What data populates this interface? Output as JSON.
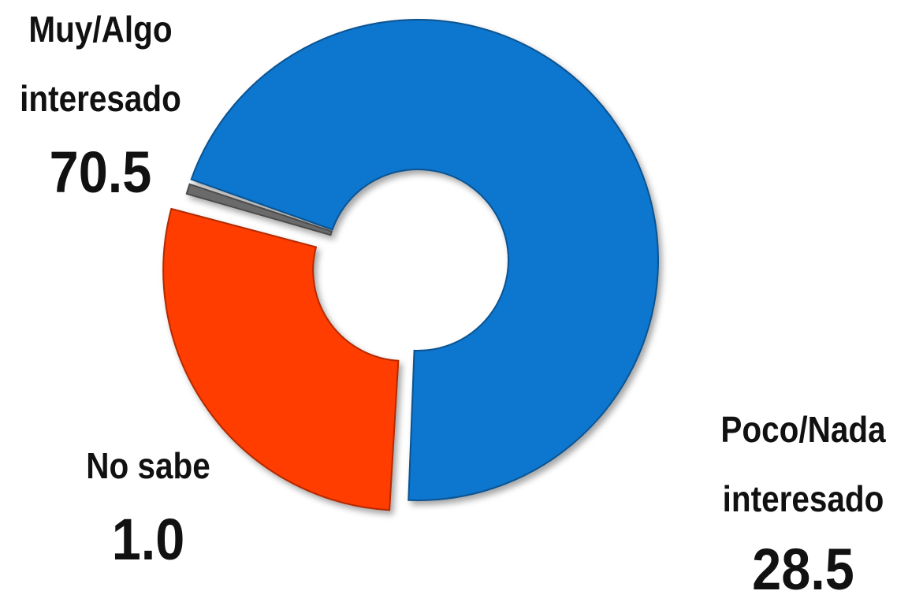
{
  "chart_data": {
    "type": "pie",
    "style": "donut",
    "slices": [
      {
        "label_line1": "Muy/Algo",
        "label_line2": "interesado",
        "value": 70.5,
        "value_text": "70.5",
        "color": "#0A76CE"
      },
      {
        "label_line1": "Poco/Nada",
        "label_line2": "interesado",
        "value": 28.5,
        "value_text": "28.5",
        "color": "#FF3C06"
      },
      {
        "label_line1": "No sabe",
        "label_line2": "",
        "value": 1.0,
        "value_text": "1.0",
        "color": "#6B6B6B"
      }
    ]
  }
}
